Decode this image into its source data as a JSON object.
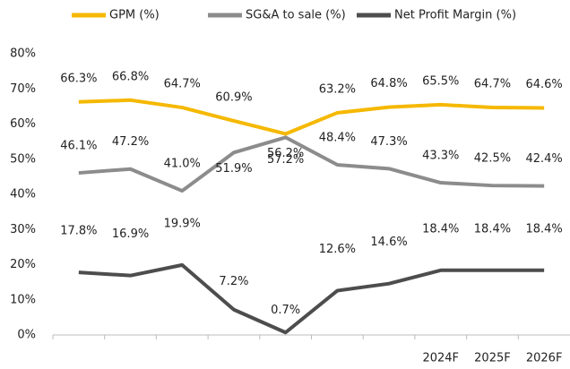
{
  "chart_data": {
    "type": "line",
    "categories": [
      null,
      null,
      null,
      null,
      null,
      null,
      null,
      "2024F",
      "2025F",
      "2026F"
    ],
    "series": [
      {
        "name": "GPM (%)",
        "color": "#f5b800",
        "values": [
          66.3,
          66.8,
          64.7,
          60.9,
          57.2,
          63.2,
          64.8,
          65.5,
          64.7,
          64.6
        ],
        "value_labels": [
          "66.3%",
          "66.8%",
          "64.7%",
          "60.9%",
          "57.2%",
          "63.2%",
          "64.8%",
          "65.5%",
          "64.7%",
          "64.6%"
        ]
      },
      {
        "name": "SG&A to sale (%)",
        "color": "#8c8c8c",
        "values": [
          46.1,
          47.2,
          41.0,
          51.9,
          56.2,
          48.4,
          47.3,
          43.3,
          42.5,
          42.4
        ],
        "value_labels": [
          "46.1%",
          "47.2%",
          "41.0%",
          "51.9%",
          "56.2%",
          "48.4%",
          "47.3%",
          "43.3%",
          "42.5%",
          "42.4%"
        ]
      },
      {
        "name": "Net Profit Margin (%)",
        "color": "#4d4d4d",
        "values": [
          17.8,
          16.9,
          19.9,
          7.2,
          0.7,
          12.6,
          14.6,
          18.4,
          18.4,
          18.4
        ],
        "value_labels": [
          "17.8%",
          "16.9%",
          "19.9%",
          "7.2%",
          "0.7%",
          "12.6%",
          "14.6%",
          "18.4%",
          "18.4%",
          "18.4%"
        ]
      }
    ],
    "ylim": [
      0,
      80
    ],
    "yticks": [
      {
        "value": 0,
        "label": "0%"
      },
      {
        "value": 10,
        "label": "10%"
      },
      {
        "value": 20,
        "label": "20%"
      },
      {
        "value": 30,
        "label": "30%"
      },
      {
        "value": 40,
        "label": "40%"
      },
      {
        "value": 50,
        "label": "50%"
      },
      {
        "value": 60,
        "label": "60%"
      },
      {
        "value": 70,
        "label": "70%"
      },
      {
        "value": 80,
        "label": "80%"
      }
    ],
    "legend": "top",
    "grid": false
  }
}
